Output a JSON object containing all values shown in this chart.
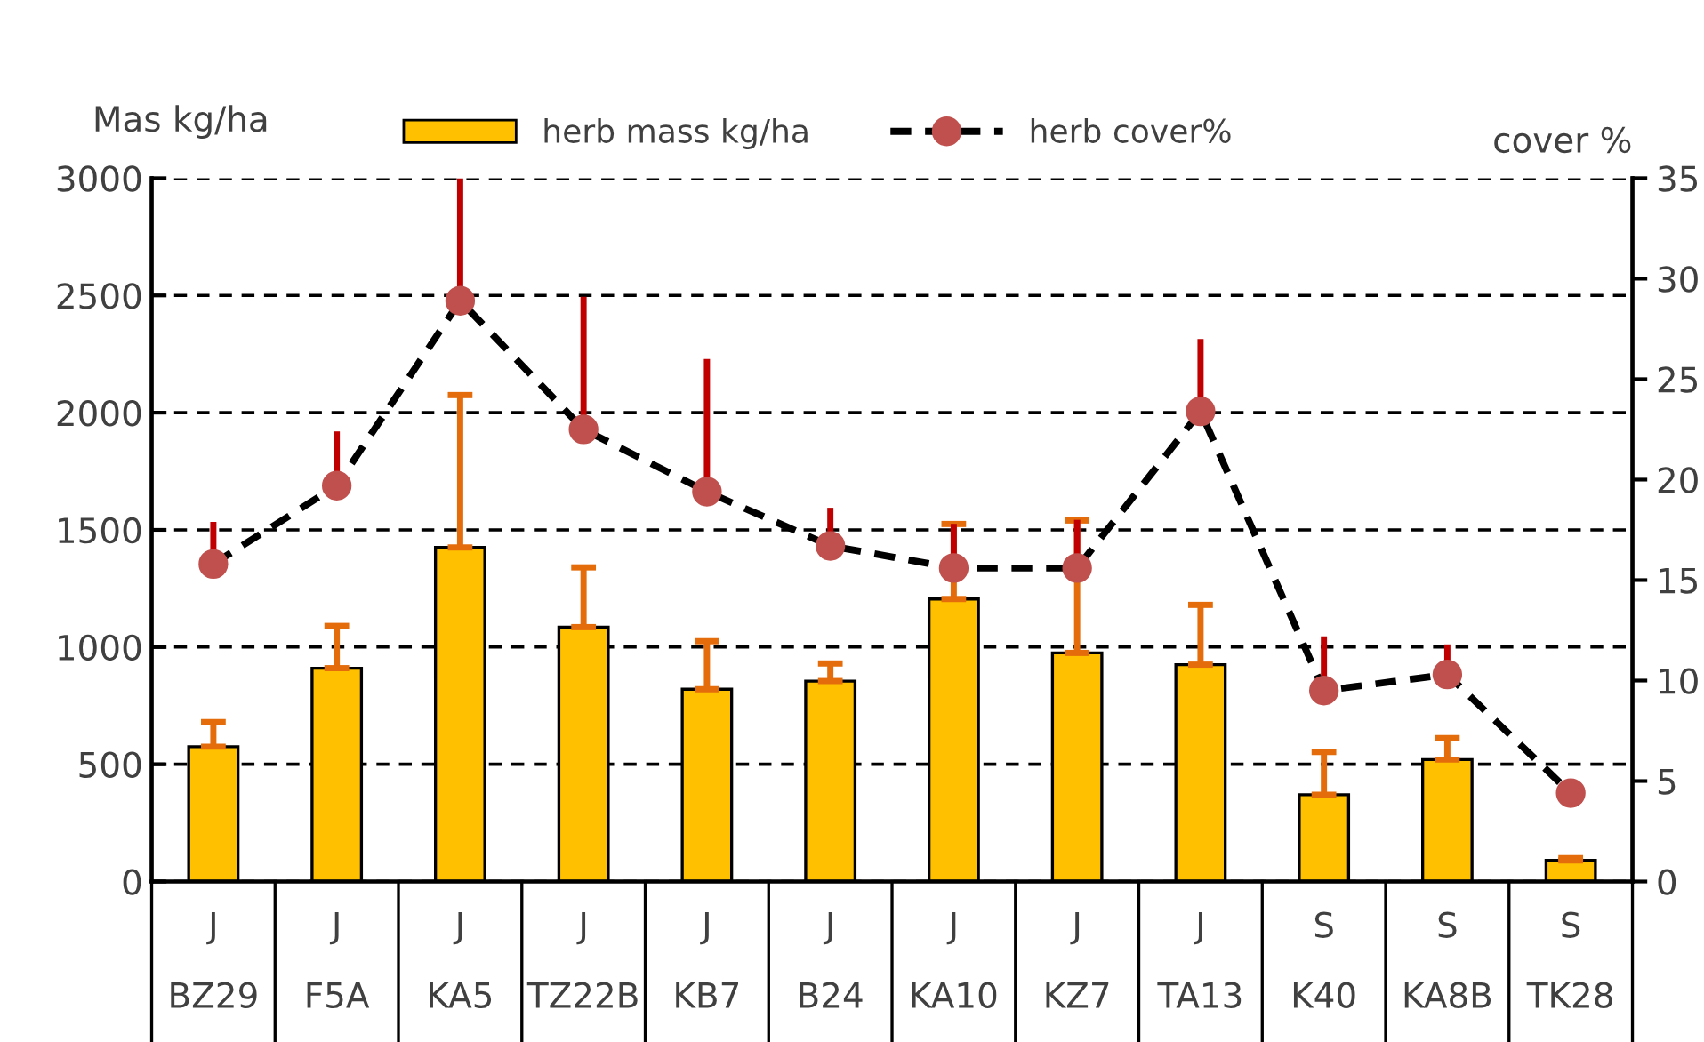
{
  "chart_data": {
    "type": "bar",
    "categories": [
      "J\nBZ29",
      "J\nF5A",
      "J\nKA5",
      "J\nTZ22B",
      "J\nKB7",
      "J\nB24",
      "J\nKA10",
      "J\nKZ7",
      "J\nTA13",
      "S\nK40",
      "S\nKA8B",
      "S\nTK28"
    ],
    "ylabel": "Mas kg/ha",
    "y2label": "cover %",
    "ylim": [
      0,
      3000
    ],
    "yticks": [
      0,
      500,
      1000,
      1500,
      2000,
      2500,
      3000
    ],
    "y2lim": [
      0,
      35
    ],
    "y2ticks": [
      0,
      5,
      10,
      15,
      20,
      25,
      30,
      35
    ],
    "grid": "y",
    "legend": "top",
    "series": [
      {
        "name": "herb mass kg/ha",
        "color": "#ffc000",
        "values": [
          575,
          910,
          1425,
          1085,
          820,
          855,
          1205,
          975,
          925,
          370,
          520,
          90
        ],
        "errors": [
          [
            575,
            680
          ],
          [
            910,
            1090
          ],
          [
            1425,
            2075
          ],
          [
            1085,
            1340
          ],
          [
            820,
            1025
          ],
          [
            855,
            930
          ],
          [
            1205,
            1525
          ],
          [
            975,
            1540
          ],
          [
            925,
            1180
          ],
          [
            370,
            553
          ],
          [
            520,
            612
          ],
          [
            90,
            100
          ]
        ]
      },
      {
        "name": "herb cover%",
        "type": "line",
        "axis": "y2",
        "color": "#c0504d",
        "marker": "circle",
        "line_style": "dashed",
        "values": [
          15.8,
          19.7,
          28.9,
          22.5,
          19.4,
          16.7,
          15.6,
          15.6,
          23.4,
          9.5,
          10.3,
          4.4
        ],
        "errors": [
          [
            15.8,
            17.9
          ],
          [
            19.7,
            22.4
          ],
          [
            28.9,
            35
          ],
          [
            22.5,
            29.1
          ],
          [
            19.4,
            26.0
          ],
          [
            16.7,
            18.6
          ],
          [
            15.6,
            17.8
          ],
          [
            15.6,
            18.0
          ],
          [
            23.4,
            27.0
          ],
          [
            9.5,
            12.2
          ],
          [
            10.3,
            11.8
          ],
          [
            4.4,
            5.1
          ]
        ]
      }
    ]
  }
}
